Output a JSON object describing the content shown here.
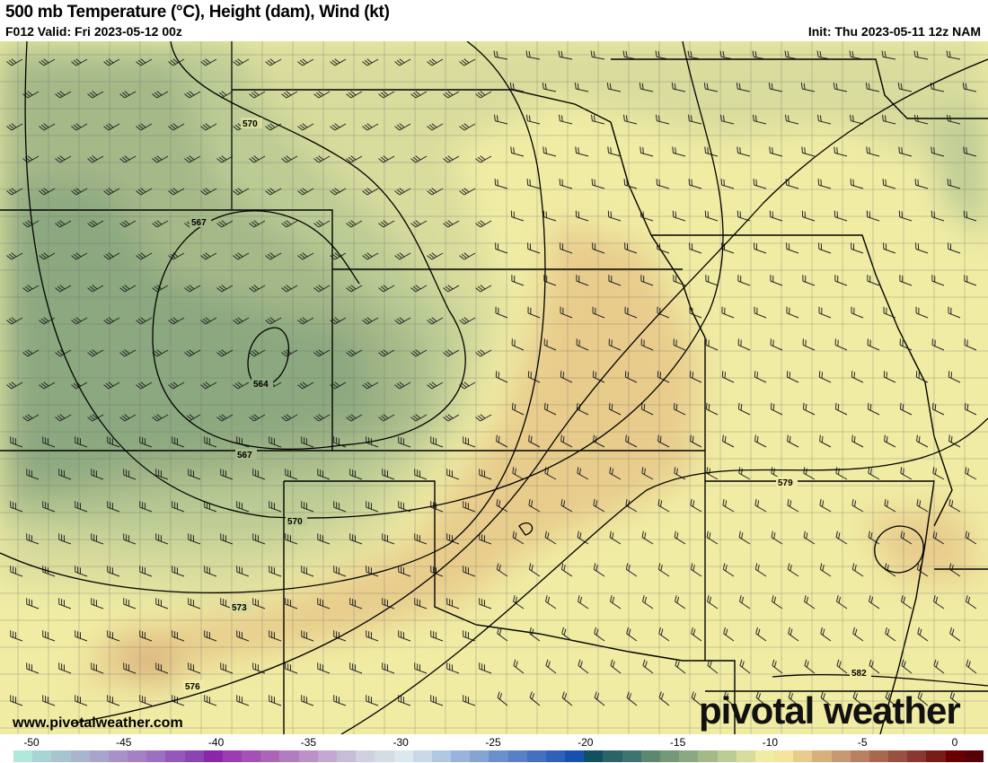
{
  "header": {
    "title": "500 mb Temperature (°C), Height (dam), Wind (kt)",
    "valid": "F012 Valid: Fri 2023-05-12 00z",
    "init": "Init: Thu 2023-05-11 12z NAM"
  },
  "map": {
    "contour_labels": [
      "570",
      "567",
      "564",
      "567",
      "570",
      "573",
      "576",
      "579",
      "582"
    ],
    "website": "www.pivotalweather.com",
    "logo": "pivotal weather"
  },
  "colorbar": {
    "ticks": [
      "-50",
      "-45",
      "-40",
      "-35",
      "-30",
      "-25",
      "-20",
      "-15",
      "-10",
      "-5",
      "0"
    ],
    "colors": [
      "#aee8dc",
      "#a8d4d4",
      "#a8c4d0",
      "#a8b4d0",
      "#a8a4cc",
      "#a890c8",
      "#a480c4",
      "#9c70c0",
      "#9458b8",
      "#8c44b0",
      "#8828a8",
      "#9c3cb0",
      "#a450b4",
      "#ac64b8",
      "#b47cc0",
      "#bc90c8",
      "#c4a8d4",
      "#c8bcd8",
      "#d0d0e0",
      "#d4dce4",
      "#dce8ec",
      "#c8d8e8",
      "#b0c8e4",
      "#98b4dc",
      "#84a4d4",
      "#6c90cc",
      "#5880c4",
      "#4470c0",
      "#3060b8",
      "#1850b0",
      "#105060",
      "#286468",
      "#3c7470",
      "#5c8870",
      "#749878",
      "#8ca880",
      "#a4b888",
      "#bccc94",
      "#d8dc9c",
      "#f0eca4",
      "#f4e49c",
      "#e8cc8c",
      "#d8b07c",
      "#c89870",
      "#b88060",
      "#a86850",
      "#985040",
      "#883830",
      "#781c18",
      "#680000",
      "#580008"
    ]
  }
}
